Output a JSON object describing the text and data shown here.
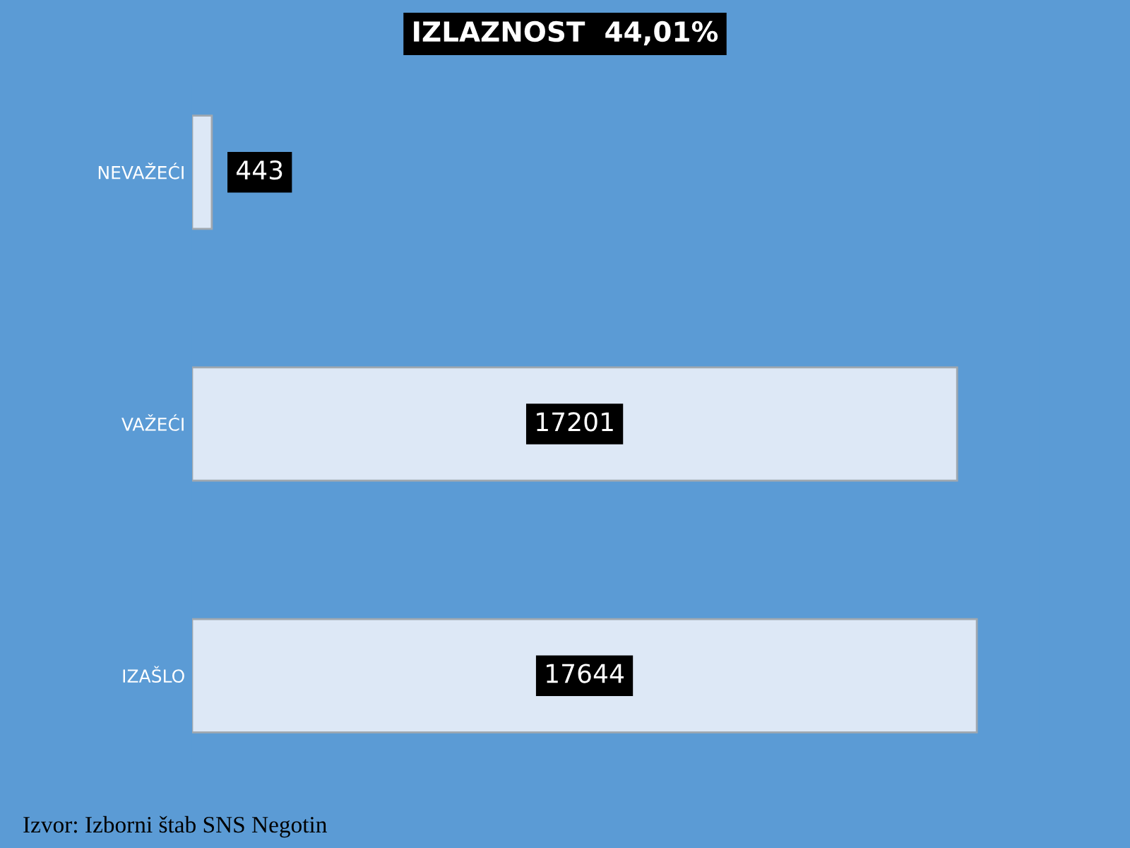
{
  "chart_data": {
    "type": "bar",
    "orientation": "horizontal",
    "title": "IZLAZNOST  44,01%",
    "categories": [
      "NEVAŽEĆI",
      "VAŽEĆI",
      "IZAŠLO"
    ],
    "values": [
      443,
      17201,
      17644
    ],
    "color": "#dde8f6",
    "data_labels": true,
    "annotations": [
      "Izvor: Izborni štab SNS Negotin"
    ],
    "grid": false,
    "legend": false
  }
}
